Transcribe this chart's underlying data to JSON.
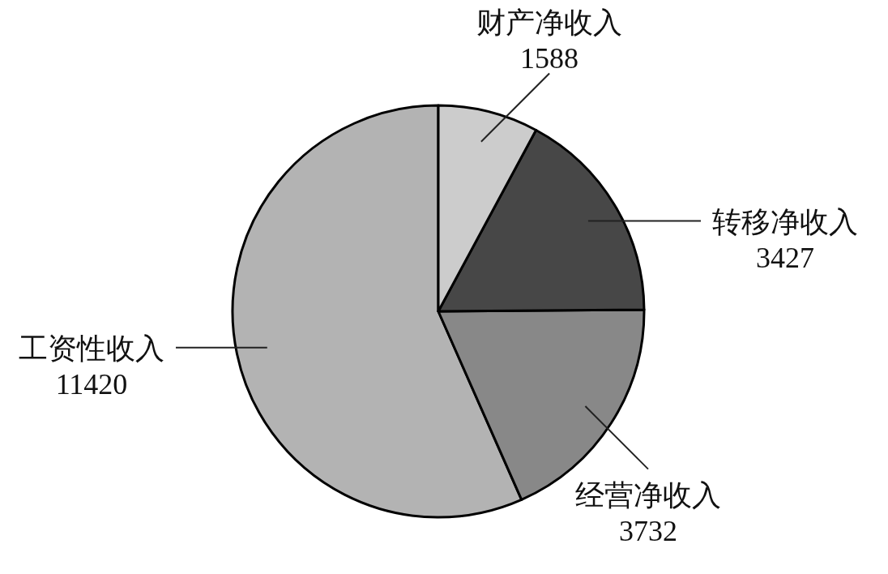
{
  "chart_data": {
    "type": "pie",
    "categories": [
      "财产净收入",
      "转移净收入",
      "经营净收入",
      "工资性收入"
    ],
    "values": [
      1588,
      3427,
      3732,
      11420
    ],
    "colors": [
      "#cccccc",
      "#474747",
      "#888888",
      "#b3b3b3"
    ],
    "data_labels": true
  }
}
